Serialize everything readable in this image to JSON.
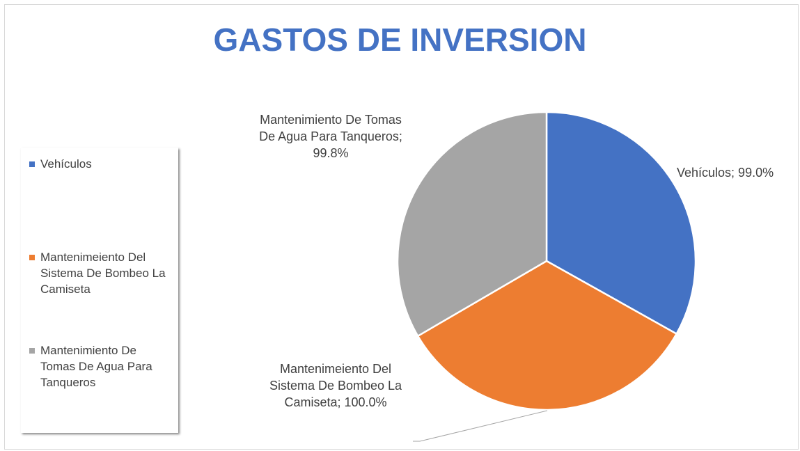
{
  "chart_data": {
    "type": "pie",
    "title": "GASTOS DE INVERSION",
    "categories": [
      "Vehículos",
      "Mantenimeiento Del Sistema De Bombeo La Camiseta",
      "Mantenimiento De Tomas De Agua Para Tanqueros"
    ],
    "values": [
      99.0,
      100.0,
      99.8
    ],
    "value_labels": [
      "Vehículos; 99.0%",
      "Mantenimeiento Del Sistema De Bombeo La Camiseta; 100.0%",
      "Mantenimiento De Tomas De Agua Para Tanqueros; 99.8%"
    ],
    "colors": [
      "#4472c4",
      "#ed7d31",
      "#a5a5a5"
    ],
    "legend": "left"
  }
}
